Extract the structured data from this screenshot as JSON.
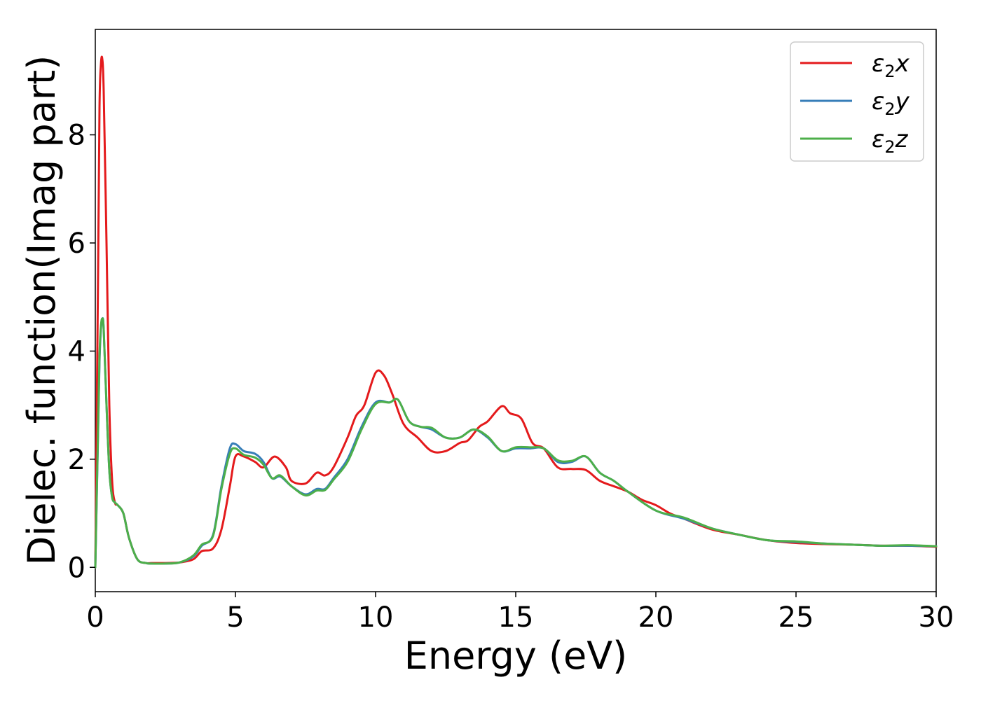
{
  "chart_data": {
    "type": "line",
    "title": "",
    "xlabel": "Energy (eV)",
    "ylabel": "Dielec. function(Imag part)",
    "xlim": [
      0,
      30
    ],
    "ylim": [
      -0.45,
      9.95
    ],
    "xticks": [
      0,
      5,
      10,
      15,
      20,
      25,
      30
    ],
    "xtick_labels": [
      "0",
      "5",
      "10",
      "15",
      "20",
      "25",
      "30"
    ],
    "yticks": [
      0,
      2,
      4,
      6,
      8
    ],
    "ytick_labels": [
      "0",
      "2",
      "4",
      "6",
      "8"
    ],
    "grid": false,
    "legend_position": "top-right",
    "series": [
      {
        "name": "ε2x",
        "legend_main": "ε",
        "legend_sub": "2",
        "legend_suffix": "x",
        "color": "#e41a1c",
        "x": [
          0,
          0.1,
          0.15,
          0.2,
          0.25,
          0.3,
          0.4,
          0.5,
          0.6,
          0.7,
          0.8,
          1.0,
          1.2,
          1.5,
          1.8,
          2.0,
          2.5,
          3.0,
          3.5,
          3.8,
          4.2,
          4.5,
          4.8,
          5.0,
          5.3,
          5.7,
          6.0,
          6.4,
          6.8,
          7.0,
          7.5,
          7.9,
          8.2,
          8.5,
          9.0,
          9.3,
          9.6,
          10.0,
          10.3,
          10.6,
          11.0,
          11.5,
          12.0,
          12.5,
          13.0,
          13.3,
          13.7,
          14.0,
          14.5,
          14.8,
          15.2,
          15.6,
          16.0,
          16.5,
          17.0,
          17.5,
          18.0,
          18.5,
          19.0,
          19.5,
          20.0,
          20.5,
          21.0,
          22.0,
          23.0,
          24.0,
          25.0,
          26.0,
          27.0,
          28.0,
          29.0,
          30.0
        ],
        "values": [
          0.0,
          5.5,
          8.5,
          9.3,
          9.4,
          8.8,
          6.0,
          3.0,
          1.6,
          1.2,
          1.15,
          1.0,
          0.55,
          0.15,
          0.08,
          0.08,
          0.08,
          0.09,
          0.15,
          0.3,
          0.35,
          0.7,
          1.5,
          2.05,
          2.05,
          1.95,
          1.85,
          2.05,
          1.85,
          1.6,
          1.55,
          1.75,
          1.7,
          1.85,
          2.4,
          2.8,
          3.0,
          3.6,
          3.55,
          3.2,
          2.65,
          2.4,
          2.15,
          2.15,
          2.3,
          2.35,
          2.6,
          2.7,
          2.98,
          2.85,
          2.75,
          2.3,
          2.2,
          1.85,
          1.82,
          1.8,
          1.6,
          1.5,
          1.4,
          1.25,
          1.15,
          1.0,
          0.9,
          0.7,
          0.6,
          0.5,
          0.45,
          0.43,
          0.42,
          0.4,
          0.4,
          0.38
        ]
      },
      {
        "name": "ε2y",
        "legend_main": "ε",
        "legend_sub": "2",
        "legend_suffix": "y",
        "color": "#377eb8",
        "x": [
          0,
          0.1,
          0.15,
          0.2,
          0.25,
          0.3,
          0.4,
          0.5,
          0.6,
          0.7,
          0.8,
          1.0,
          1.2,
          1.5,
          1.8,
          2.0,
          2.5,
          3.0,
          3.5,
          3.8,
          4.2,
          4.5,
          4.8,
          5.0,
          5.3,
          5.7,
          6.0,
          6.3,
          6.6,
          7.0,
          7.5,
          7.9,
          8.2,
          8.5,
          9.0,
          9.5,
          10.0,
          10.5,
          10.8,
          11.2,
          11.6,
          12.0,
          12.5,
          13.0,
          13.5,
          14.0,
          14.5,
          15.0,
          15.5,
          16.0,
          16.5,
          17.0,
          17.5,
          18.0,
          18.5,
          19.0,
          20.0,
          21.0,
          22.0,
          23.0,
          24.0,
          25.0,
          26.0,
          27.0,
          28.0,
          29.0,
          30.0
        ],
        "values": [
          0.0,
          2.5,
          3.8,
          4.4,
          4.6,
          4.4,
          3.0,
          1.8,
          1.3,
          1.2,
          1.15,
          1.0,
          0.55,
          0.15,
          0.08,
          0.07,
          0.07,
          0.09,
          0.2,
          0.4,
          0.6,
          1.5,
          2.2,
          2.28,
          2.15,
          2.1,
          1.95,
          1.65,
          1.68,
          1.5,
          1.35,
          1.45,
          1.45,
          1.65,
          2.0,
          2.6,
          3.05,
          3.05,
          3.1,
          2.7,
          2.6,
          2.55,
          2.4,
          2.4,
          2.55,
          2.4,
          2.15,
          2.2,
          2.2,
          2.2,
          1.95,
          1.95,
          2.05,
          1.75,
          1.6,
          1.4,
          1.05,
          0.9,
          0.72,
          0.6,
          0.5,
          0.47,
          0.44,
          0.42,
          0.4,
          0.4,
          0.39
        ]
      },
      {
        "name": "ε2z",
        "legend_main": "ε",
        "legend_sub": "2",
        "legend_suffix": "z",
        "color": "#4daf4a",
        "x": [
          0,
          0.1,
          0.15,
          0.2,
          0.25,
          0.3,
          0.4,
          0.5,
          0.6,
          0.7,
          0.8,
          1.0,
          1.2,
          1.5,
          1.8,
          2.0,
          2.5,
          3.0,
          3.5,
          3.8,
          4.2,
          4.5,
          4.8,
          5.0,
          5.3,
          5.7,
          6.0,
          6.3,
          6.6,
          7.0,
          7.5,
          7.9,
          8.2,
          8.5,
          9.0,
          9.5,
          10.0,
          10.5,
          10.8,
          11.2,
          11.6,
          12.0,
          12.5,
          13.0,
          13.5,
          14.0,
          14.5,
          15.0,
          15.5,
          16.0,
          16.5,
          17.0,
          17.5,
          18.0,
          18.5,
          19.0,
          20.0,
          21.0,
          22.0,
          23.0,
          24.0,
          25.0,
          26.0,
          27.0,
          28.0,
          29.0,
          30.0
        ],
        "values": [
          0.0,
          2.6,
          3.9,
          4.45,
          4.6,
          4.4,
          3.0,
          1.8,
          1.3,
          1.2,
          1.15,
          1.0,
          0.55,
          0.15,
          0.08,
          0.07,
          0.07,
          0.09,
          0.22,
          0.42,
          0.58,
          1.45,
          2.1,
          2.2,
          2.08,
          2.03,
          1.9,
          1.65,
          1.7,
          1.5,
          1.33,
          1.42,
          1.43,
          1.62,
          1.95,
          2.55,
          3.02,
          3.05,
          3.1,
          2.7,
          2.6,
          2.58,
          2.4,
          2.4,
          2.55,
          2.42,
          2.15,
          2.22,
          2.22,
          2.2,
          1.98,
          1.97,
          2.05,
          1.75,
          1.6,
          1.4,
          1.05,
          0.92,
          0.72,
          0.6,
          0.5,
          0.48,
          0.44,
          0.42,
          0.4,
          0.41,
          0.39
        ]
      }
    ]
  }
}
